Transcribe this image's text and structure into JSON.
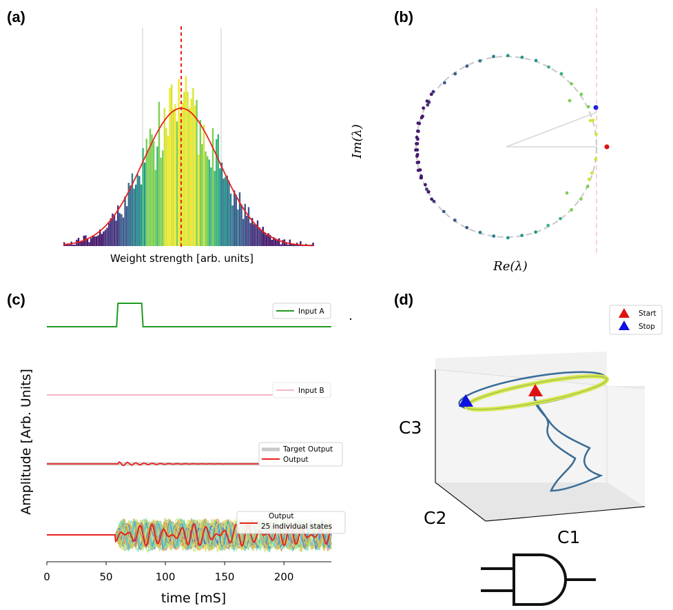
{
  "panels": {
    "a": {
      "letter": "(a)"
    },
    "b": {
      "letter": "(b)"
    },
    "c": {
      "letter": "(c)"
    },
    "d": {
      "letter": "(d)"
    }
  },
  "chart_data": [
    {
      "panel": "(a)",
      "type": "bar",
      "title": "",
      "xlabel": "Weight strength [arb. units]",
      "ylabel": "",
      "grid": false,
      "overlay": "fitted normal curve (red) with dashed red line at mean; light vertical reference lines at mean ± 1 sd",
      "colormap": "viridis",
      "note": "histogram of weight strengths, unlabeled axes",
      "colors": {
        "curve": "#e8211c",
        "mean_line": "#e8211c"
      }
    },
    {
      "panel": "(b)",
      "type": "scatter",
      "title": "",
      "xlabel": "Re(λ)",
      "ylabel": "Im(λ)",
      "grid": false,
      "note": "eigenvalues on unit circle with dashed vertical line at Re = 1",
      "highlight_points": [
        {
          "name": "blue point",
          "x": 0.985,
          "y": 0.4,
          "color": "#2020e0"
        },
        {
          "name": "red point",
          "x": 1.09,
          "y": 0.0,
          "color": "#e01010"
        }
      ],
      "colors": {
        "circle": "#c8c8c8",
        "reference_line": "#f4c3be"
      }
    },
    {
      "panel": "(c)",
      "type": "line",
      "title": "",
      "xlabel": "time [mS]",
      "ylabel": "Amplitude [Arb. Units]",
      "xlim": [
        0,
        240
      ],
      "xticks": [
        0,
        50,
        100,
        150,
        200
      ],
      "grid": false,
      "input_pulse": {
        "start": 60,
        "end": 80
      },
      "legends": [
        {
          "entries": [
            {
              "label": "Input A",
              "color": "#1f9a1f"
            }
          ]
        },
        {
          "entries": [
            {
              "label": "Input B",
              "color": "#f7b6c2"
            }
          ]
        },
        {
          "entries": [
            {
              "label": "Target Output",
              "color": "#c8c8c8"
            },
            {
              "label": "Output",
              "color": "#e8211c"
            }
          ]
        },
        {
          "entries": [
            {
              "label": "Output\n25 individual states",
              "color": "#e8211c"
            }
          ]
        }
      ]
    },
    {
      "panel": "(d)",
      "type": "line",
      "title": "",
      "axes_3d": [
        "C1",
        "C2",
        "C3"
      ],
      "grid": true,
      "legend": [
        {
          "label": "Start",
          "marker": "triangle",
          "color": "#e01010"
        },
        {
          "label": "Stop",
          "marker": "triangle",
          "color": "#1010e0"
        }
      ],
      "colors": {
        "trajectory": "#3b6d96",
        "limit_cycle": "#d8e84a"
      }
    }
  ]
}
